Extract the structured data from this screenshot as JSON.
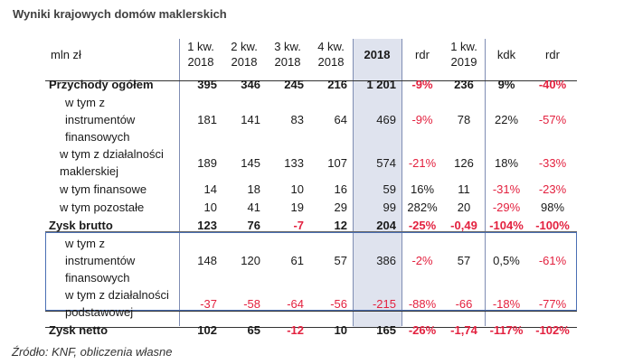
{
  "title": "Wyniki krajowych domów maklerskich",
  "source": "Źródło: KNF, obliczenia własne",
  "table": {
    "headers": [
      "mln zł",
      "1 kw.\n2018",
      "2 kw.\n2018",
      "3 kw.\n2018",
      "4 kw.\n2018",
      "2018",
      "rdr",
      "1 kw.\n2019",
      "kdk",
      "rdr"
    ],
    "rows": [
      {
        "label": "Przychody ogółem",
        "cells": [
          "395",
          "346",
          "245",
          "216",
          "1 201",
          "-9%",
          "236",
          "9%",
          "-40%"
        ]
      },
      {
        "label": "w tym z instrumentów finansowych",
        "cells": [
          "181",
          "141",
          "83",
          "64",
          "469",
          "-9%",
          "78",
          "22%",
          "-57%"
        ]
      },
      {
        "label": "w tym z działalności maklerskiej",
        "cells": [
          "189",
          "145",
          "133",
          "107",
          "574",
          "-21%",
          "126",
          "18%",
          "-33%"
        ]
      },
      {
        "label": "w tym finansowe",
        "cells": [
          "14",
          "18",
          "10",
          "16",
          "59",
          "16%",
          "11",
          "-31%",
          "-23%"
        ]
      },
      {
        "label": "w tym pozostałe",
        "cells": [
          "10",
          "41",
          "19",
          "29",
          "99",
          "282%",
          "20",
          "-29%",
          "98%"
        ]
      },
      {
        "label": "Zysk brutto",
        "cells": [
          "123",
          "76",
          "-7",
          "12",
          "204",
          "-25%",
          "-0,49",
          "-104%",
          "-100%"
        ]
      },
      {
        "label": "w tym z instrumentów finansowych",
        "cells": [
          "148",
          "120",
          "61",
          "57",
          "386",
          "-2%",
          "57",
          "0,5%",
          "-61%"
        ]
      },
      {
        "label": "w tym z działalności podstawowej",
        "cells": [
          "-37",
          "-58",
          "-64",
          "-56",
          "-215",
          "-88%",
          "-66",
          "-18%",
          "-77%"
        ]
      },
      {
        "label": "Zysk netto",
        "cells": [
          "102",
          "65",
          "-12",
          "10",
          "165",
          "-26%",
          "-1,74",
          "-117%",
          "-102%"
        ]
      }
    ]
  },
  "colors": {
    "negative": "#e3213f",
    "highlight_column": "#dfe3ee",
    "box": "#4a6fb4"
  }
}
